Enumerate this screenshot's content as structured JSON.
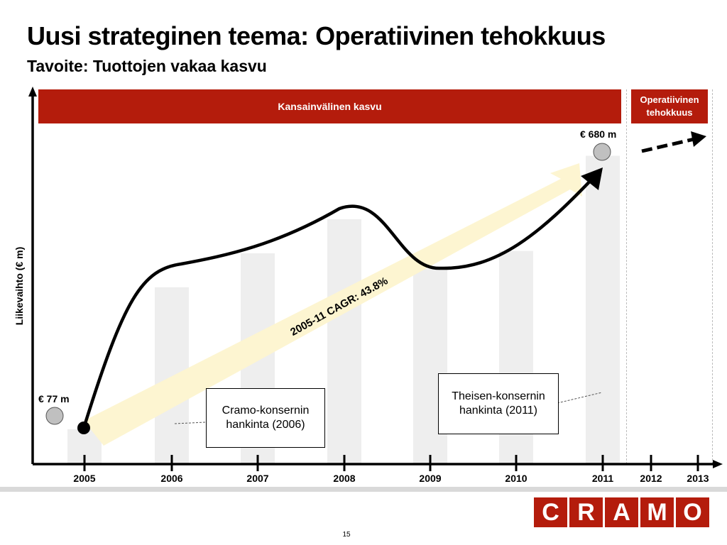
{
  "title": "Uusi strateginen teema: Operatiivinen tehokkuus",
  "subtitle": "Tavoite: Tuottojen vakaa kasvu",
  "phases": {
    "international_growth": "Kansainvälinen kasvu",
    "operational_efficiency": "Operatiivinen tehokkuus"
  },
  "chart_data": {
    "type": "bar",
    "ylabel": "Liikevaihto (€ m)",
    "categories": [
      "2005",
      "2006",
      "2007",
      "2008",
      "2009",
      "2010",
      "2011",
      "2012",
      "2013"
    ],
    "values": [
      77,
      390,
      465,
      540,
      430,
      470,
      680,
      null,
      null
    ],
    "ylim": [
      0,
      820
    ],
    "grid": false,
    "colors": {
      "bars": "#eeeeee",
      "accent": "#b41c0c",
      "curve": "#000000",
      "cagr_arrow": "#fdf4cf"
    },
    "annotations": {
      "start_value": "€ 77 m",
      "end_value": "€ 680 m",
      "cagr": "2005-11 CAGR: 43.8%"
    },
    "callouts": [
      {
        "year": "2006",
        "text": "Cramo-konsernin hankinta (2006)"
      },
      {
        "year": "2011",
        "text": "Theisen-konsernin hankinta (2011)"
      }
    ]
  },
  "logo": [
    "C",
    "R",
    "A",
    "M",
    "O"
  ],
  "page_number": "15"
}
